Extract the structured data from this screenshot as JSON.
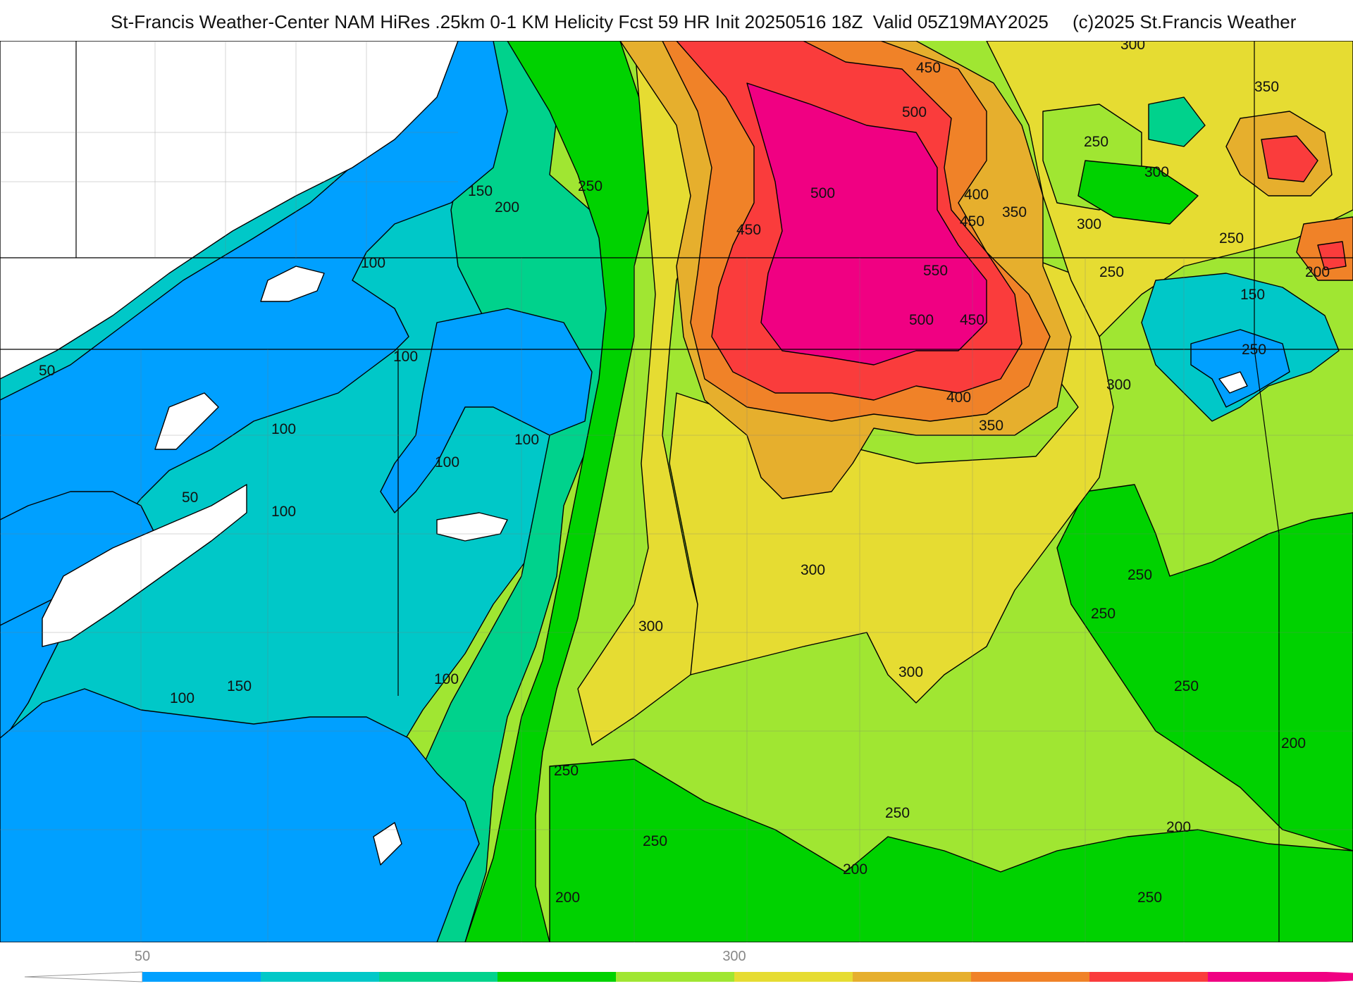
{
  "header": {
    "title": "St-Francis Weather-Center NAM HiRes .25km 0-1 KM Helicity Fcst 59 HR Init 20250516 18Z  Valid 05Z19MAY2025",
    "credit": "(c)2025 St.Francis Weather"
  },
  "map": {
    "colors": {
      "below_50": "#ffffff",
      "r50": "#00a0ff",
      "r100": "#00c8c8",
      "r150": "#00d28c",
      "r200": "#00d200",
      "r250": "#a0e632",
      "r300": "#e6dc32",
      "r350": "#e6af2d",
      "r400": "#f08228",
      "r450": "#fa3c3c",
      "r500": "#f00082"
    },
    "contour_labels": [
      "50",
      "100",
      "150",
      "200",
      "250",
      "300",
      "350",
      "400",
      "450",
      "500",
      "550"
    ]
  },
  "colorbar": {
    "tick_labels": [
      "50",
      "300"
    ],
    "segment_colors": [
      "#00a0ff",
      "#00c8c8",
      "#00d28c",
      "#00d200",
      "#a0e632",
      "#e6dc32",
      "#e6af2d",
      "#f08228",
      "#fa3c3c",
      "#f00082"
    ],
    "under_color": "#ffffff",
    "over_color": "#f00082"
  }
}
